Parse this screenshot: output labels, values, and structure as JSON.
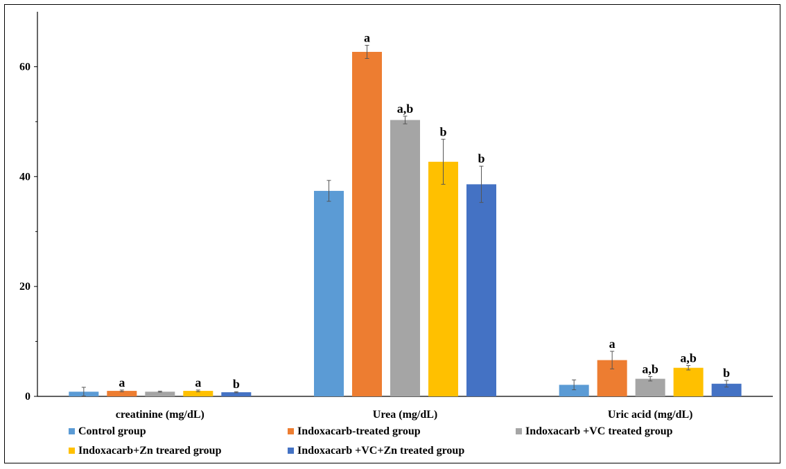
{
  "chart_data": {
    "type": "bar",
    "title": "",
    "xlabel": "",
    "ylabel": "",
    "ylim": [
      0,
      70
    ],
    "yticks": [
      0,
      20,
      40,
      60
    ],
    "categories": [
      "creatinine (mg/dL)",
      "Urea (mg/dL)",
      "Uric acid (mg/dL)"
    ],
    "legend_position": "bottom",
    "grid": false,
    "series": [
      {
        "name": "Control group",
        "color": "#5b9bd5",
        "values": [
          0.85,
          37.4,
          2.1
        ],
        "errors": [
          0.8,
          1.9,
          0.9
        ],
        "labels": [
          "",
          "",
          ""
        ]
      },
      {
        "name": "Indoxacarb-treated group",
        "color": "#ed7d31",
        "values": [
          1.0,
          62.7,
          6.6
        ],
        "errors": [
          0.15,
          1.2,
          1.6
        ],
        "labels": [
          "a",
          "a",
          "a"
        ]
      },
      {
        "name": "Indoxacarb +VC treated group",
        "color": "#a5a5a5",
        "values": [
          0.85,
          50.3,
          3.2
        ],
        "errors": [
          0.1,
          0.7,
          0.4
        ],
        "labels": [
          "",
          "a,b",
          "a,b"
        ]
      },
      {
        "name": "Indoxacarb+Zn treared group",
        "color": "#ffc000",
        "values": [
          1.0,
          42.7,
          5.2
        ],
        "errors": [
          0.15,
          4.1,
          0.4
        ],
        "labels": [
          "a",
          "b",
          "a,b"
        ]
      },
      {
        "name": "Indoxacarb +VC+Zn treated group",
        "color": "#4472c4",
        "values": [
          0.75,
          38.6,
          2.3
        ],
        "errors": [
          0.1,
          3.3,
          0.6
        ],
        "labels": [
          "b",
          "b",
          "b"
        ]
      }
    ]
  }
}
